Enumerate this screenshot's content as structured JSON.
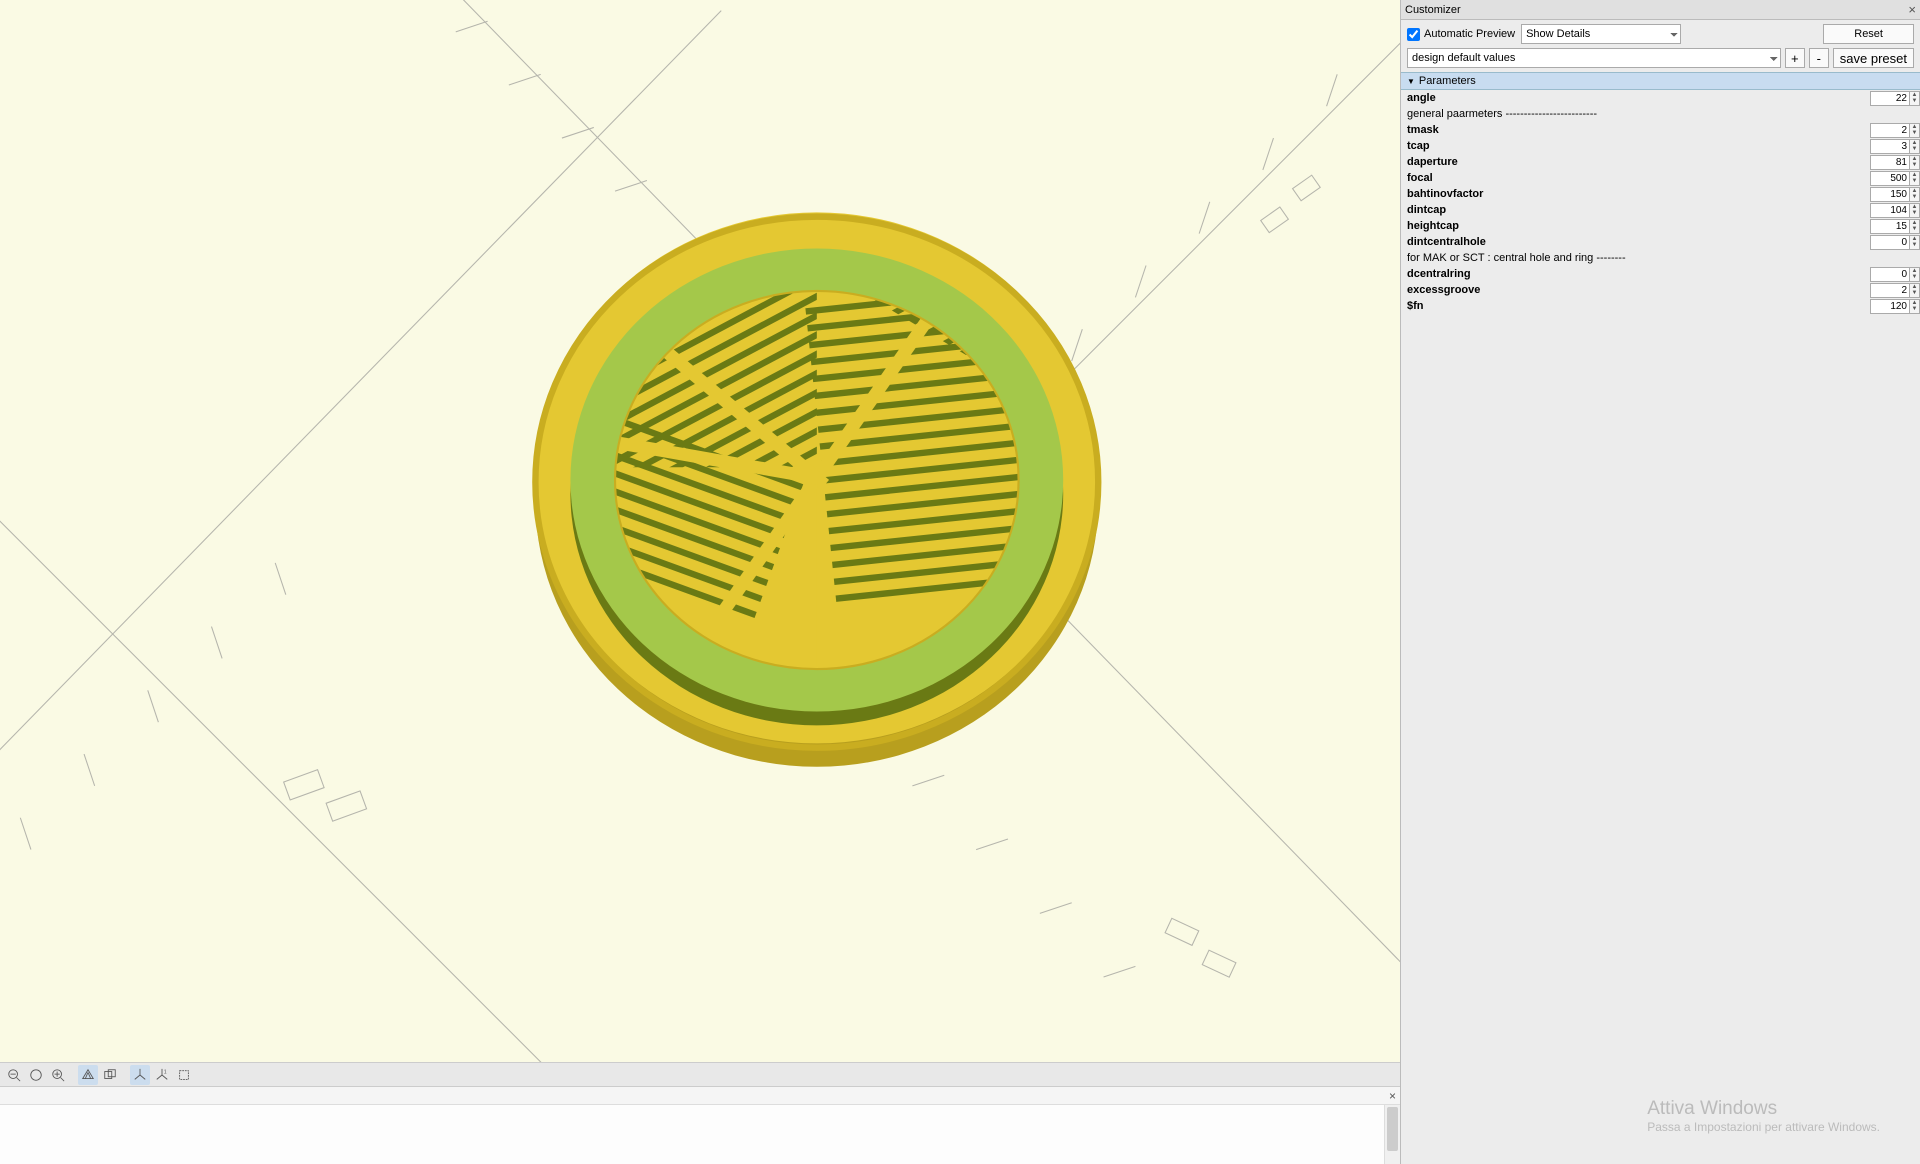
{
  "customizer": {
    "title": "Customizer",
    "autoPreviewLabel": "Automatic Preview",
    "detailsLabel": "Show Details",
    "resetLabel": "Reset",
    "presetLabel": "design default values",
    "savePresetLabel": "save preset",
    "paramHeader": "Parameters",
    "params": [
      {
        "name": "angle",
        "value": "22",
        "bold": true,
        "hasVal": true
      },
      {
        "name": "general paarmeters -------------------------",
        "value": "",
        "bold": false,
        "hasVal": false
      },
      {
        "name": "tmask",
        "value": "2",
        "bold": true,
        "hasVal": true
      },
      {
        "name": "tcap",
        "value": "3",
        "bold": true,
        "hasVal": true
      },
      {
        "name": "daperture",
        "value": "81",
        "bold": true,
        "hasVal": true
      },
      {
        "name": "focal",
        "value": "500",
        "bold": true,
        "hasVal": true
      },
      {
        "name": "bahtinovfactor",
        "value": "150",
        "bold": true,
        "hasVal": true
      },
      {
        "name": "dintcap",
        "value": "104",
        "bold": true,
        "hasVal": true
      },
      {
        "name": "heightcap",
        "value": "15",
        "bold": true,
        "hasVal": true
      },
      {
        "name": "dintcentralhole",
        "value": "0",
        "bold": true,
        "hasVal": true
      },
      {
        "name": "for MAK or SCT : central hole and ring --------",
        "value": "",
        "bold": false,
        "hasVal": false
      },
      {
        "name": "dcentralring",
        "value": "0",
        "bold": true,
        "hasVal": true
      },
      {
        "name": "excessgroove",
        "value": "2",
        "bold": true,
        "hasVal": true
      },
      {
        "name": "$fn",
        "value": "120",
        "bold": true,
        "hasVal": true
      }
    ]
  },
  "watermark": {
    "line1": "Attiva Windows",
    "line2": "Passa a Impostazioni per attivare Windows."
  },
  "viewport": {
    "bg": "#fafae4",
    "axisColor": "#777",
    "outerRing": "#e4c832",
    "innerRing": "#a4c84a",
    "maskColor": "#e4c832",
    "slotShadow": "#6a7a14"
  }
}
